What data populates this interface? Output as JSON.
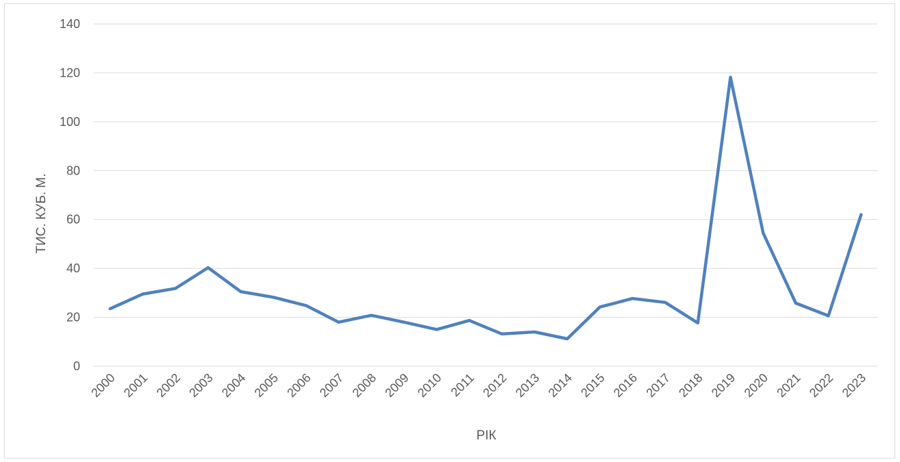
{
  "chart_data": {
    "type": "line",
    "title": "",
    "xlabel": "РІК",
    "ylabel": "ТИС. КУБ. М.",
    "ylim": [
      0,
      140
    ],
    "yticks": [
      0,
      20,
      40,
      60,
      80,
      100,
      120,
      140
    ],
    "grid": true,
    "legend": "none",
    "categories": [
      "2000",
      "2001",
      "2002",
      "2003",
      "2004",
      "2005",
      "2006",
      "2007",
      "2008",
      "2009",
      "2010",
      "2011",
      "2012",
      "2013",
      "2014",
      "2015",
      "2016",
      "2017",
      "2018",
      "2019",
      "2020",
      "2021",
      "2022",
      "2023"
    ],
    "series": [
      {
        "color": "#4f81bd",
        "values": [
          23.5,
          29.5,
          31.8,
          40.3,
          30.5,
          28.2,
          24.8,
          18.0,
          20.8,
          18.0,
          15.0,
          18.7,
          13.2,
          14.0,
          11.2,
          24.2,
          27.7,
          26.1,
          17.7,
          118.2,
          54.5,
          25.8,
          20.6,
          62.0
        ]
      }
    ]
  }
}
